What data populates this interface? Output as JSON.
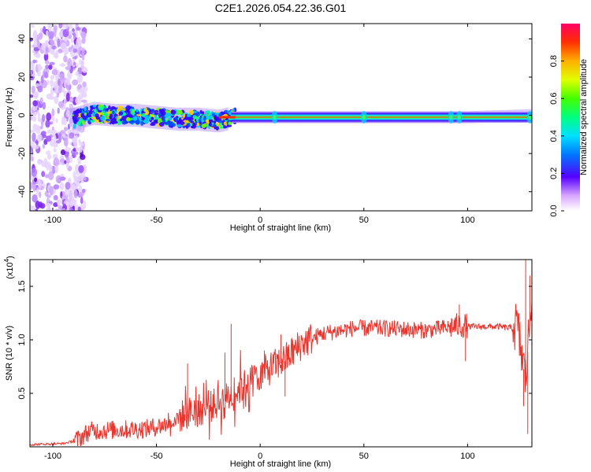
{
  "page_title": "C2E1.2026.054.22.36.G01",
  "colorbar": {
    "label": "Normalized spectral amplitude",
    "ticks": [
      "0.0",
      "0.2",
      "0.4",
      "0.6",
      "0.8"
    ],
    "tick_values": [
      0.0,
      0.2,
      0.4,
      0.6,
      0.8
    ],
    "range": [
      0,
      1
    ]
  },
  "chart_data": [
    {
      "type": "heatmap",
      "xlabel": "Height of straight line (km)",
      "ylabel": "Frequency (Hz)",
      "xlim": [
        -111,
        131
      ],
      "ylim": [
        -50,
        48
      ],
      "x_ticks": [
        "-100",
        "-50",
        "0",
        "50",
        "100"
      ],
      "x_tick_values": [
        -100,
        -50,
        0,
        50,
        100
      ],
      "y_ticks": [
        "-40",
        "-20",
        "0",
        "20",
        "40"
      ],
      "y_tick_values": [
        -40,
        -20,
        0,
        20,
        40
      ],
      "band": {
        "frequency_center": [
          {
            "x": -90,
            "y": -2
          },
          {
            "x": -80,
            "y": 1
          },
          {
            "x": -70,
            "y": 0
          },
          {
            "x": -60,
            "y": 0
          },
          {
            "x": -50,
            "y": -1
          },
          {
            "x": -40,
            "y": -2
          },
          {
            "x": -30,
            "y": -2
          },
          {
            "x": -20,
            "y": -3
          },
          {
            "x": -12,
            "y": -1
          },
          {
            "x": 0,
            "y": -1
          },
          {
            "x": 50,
            "y": -1
          },
          {
            "x": 100,
            "y": -1
          },
          {
            "x": 131,
            "y": 0
          }
        ],
        "peak_amplitude": 0.95,
        "noise_region_x": [
          -111,
          -88
        ]
      }
    },
    {
      "type": "line",
      "xlabel": "Height of straight line (km)",
      "ylabel": "SNR (10 * v/v)",
      "y_scale_note": "(x10",
      "y_scale_exp": "4",
      "y_scale_close": ")",
      "xlim": [
        -111,
        131
      ],
      "ylim": [
        0,
        1.75
      ],
      "x_ticks": [
        "-100",
        "-50",
        "0",
        "50",
        "100"
      ],
      "x_tick_values": [
        -100,
        -50,
        0,
        50,
        100
      ],
      "y_ticks": [
        "0.5",
        "1.0",
        "1.5"
      ],
      "y_tick_values": [
        0.5,
        1.0,
        1.5
      ],
      "series_color": "#e8362f",
      "trend": [
        {
          "x": -111,
          "y": 0.02
        },
        {
          "x": -95,
          "y": 0.03
        },
        {
          "x": -88,
          "y": 0.06
        },
        {
          "x": -82,
          "y": 0.14
        },
        {
          "x": -70,
          "y": 0.15
        },
        {
          "x": -55,
          "y": 0.16
        },
        {
          "x": -45,
          "y": 0.2
        },
        {
          "x": -35,
          "y": 0.3
        },
        {
          "x": -25,
          "y": 0.35
        },
        {
          "x": -15,
          "y": 0.45
        },
        {
          "x": -5,
          "y": 0.6
        },
        {
          "x": 5,
          "y": 0.72
        },
        {
          "x": 12,
          "y": 0.8
        },
        {
          "x": 20,
          "y": 0.95
        },
        {
          "x": 30,
          "y": 1.05
        },
        {
          "x": 45,
          "y": 1.1
        },
        {
          "x": 60,
          "y": 1.1
        },
        {
          "x": 80,
          "y": 1.08
        },
        {
          "x": 95,
          "y": 1.12
        },
        {
          "x": 105,
          "y": 1.12
        },
        {
          "x": 115,
          "y": 1.12
        },
        {
          "x": 124,
          "y": 1.1
        },
        {
          "x": 128,
          "y": 0.6
        },
        {
          "x": 131,
          "y": 1.45
        }
      ],
      "spikes": [
        {
          "x": -35,
          "y": 0.78
        },
        {
          "x": -17,
          "y": 0.88
        },
        {
          "x": -14,
          "y": 1.15
        },
        {
          "x": 2,
          "y": 0.9
        },
        {
          "x": 10,
          "y": 1.05
        },
        {
          "x": 12,
          "y": 0.47
        },
        {
          "x": 18,
          "y": 0.85
        },
        {
          "x": 96,
          "y": 1.33
        },
        {
          "x": 99,
          "y": 0.8
        },
        {
          "x": 127,
          "y": 0.38
        },
        {
          "x": 128,
          "y": 1.75
        },
        {
          "x": 129,
          "y": 0.12
        },
        {
          "x": 130,
          "y": 1.6
        }
      ]
    }
  ]
}
